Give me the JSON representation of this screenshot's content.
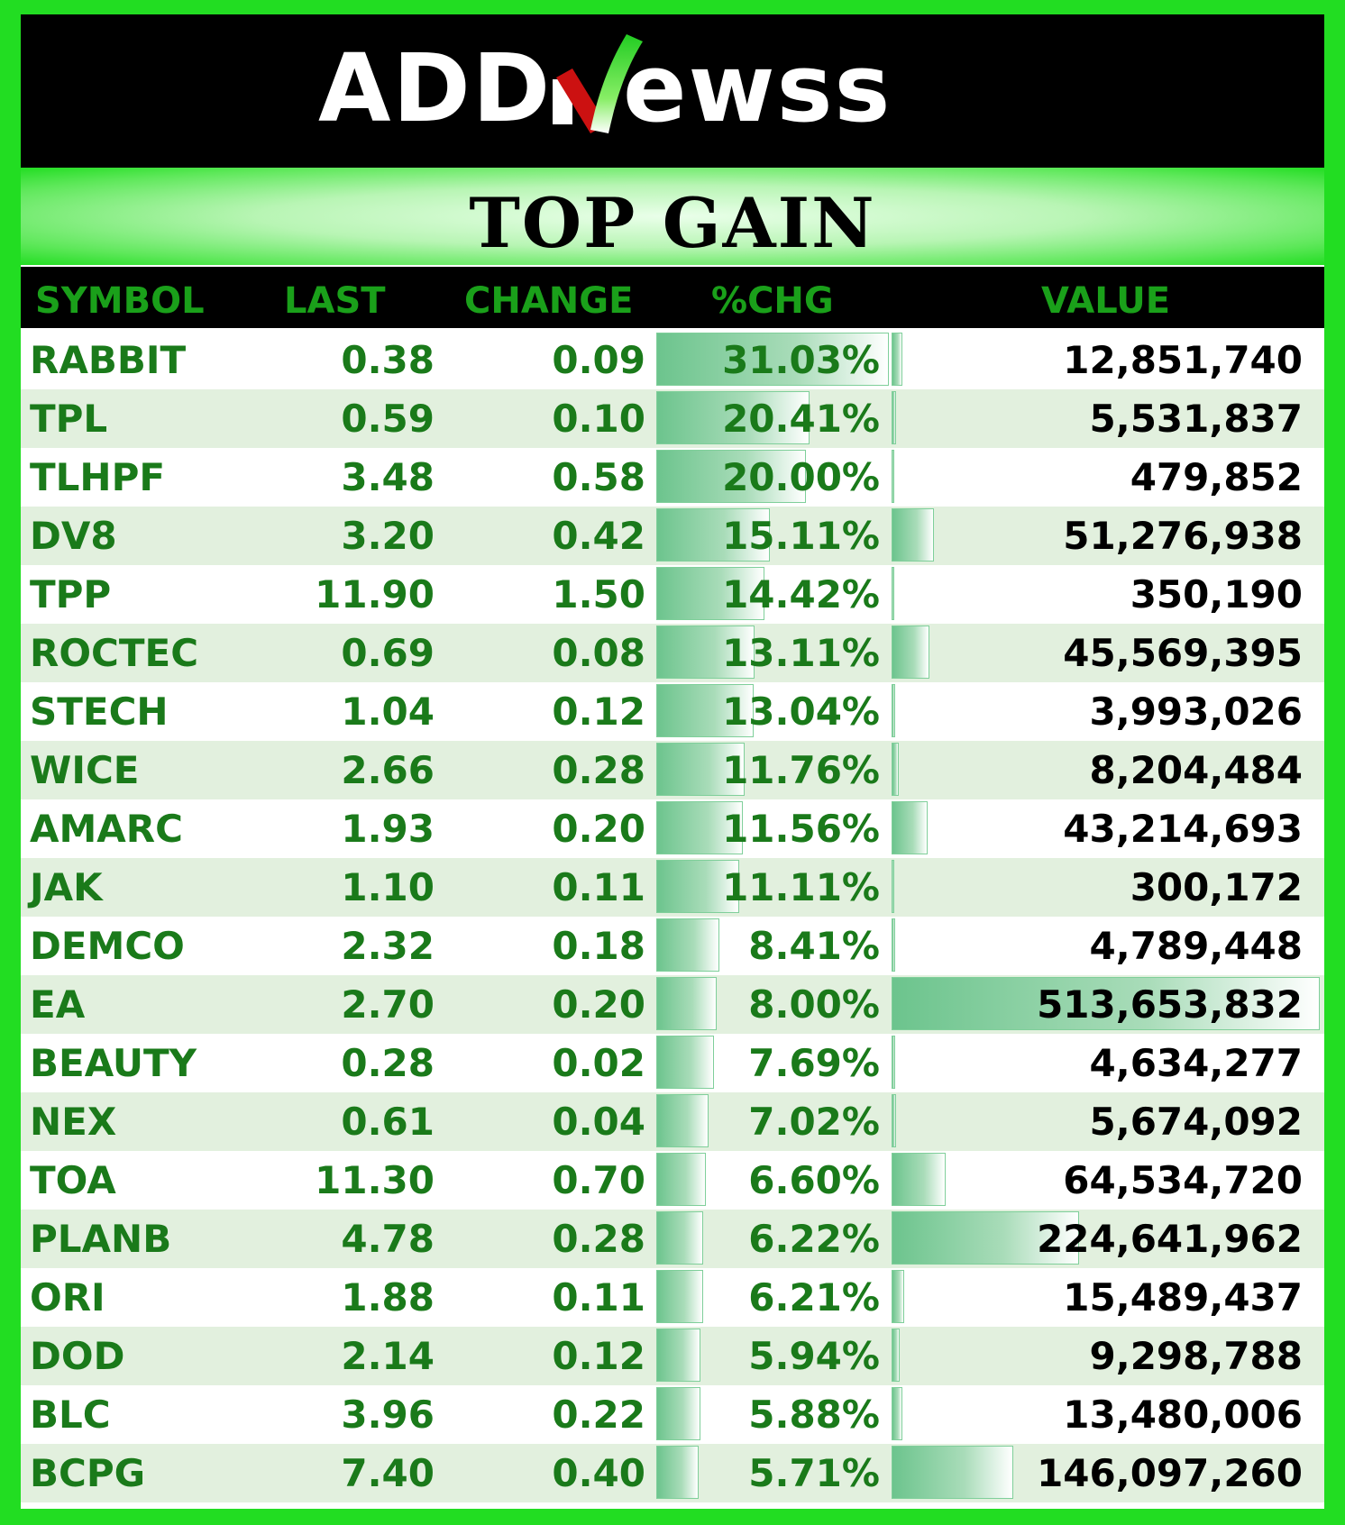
{
  "brand": {
    "name": "ADDNEWSS",
    "colors": {
      "green": "#22dd22",
      "red": "#cc1111",
      "dark_green": "#1a7a1a"
    }
  },
  "title": "TOP GAIN",
  "headers": {
    "symbol": "SYMBOL",
    "last": "LAST",
    "change": "CHANGE",
    "pct": "%CHG",
    "value": "VALUE"
  },
  "rows": [
    {
      "symbol": "RABBIT",
      "last": "0.38",
      "change": "0.09",
      "pct": "31.03%",
      "value": "12,851,740",
      "pct_num": 31.03,
      "value_num": 12851740
    },
    {
      "symbol": "TPL",
      "last": "0.59",
      "change": "0.10",
      "pct": "20.41%",
      "value": "5,531,837",
      "pct_num": 20.41,
      "value_num": 5531837
    },
    {
      "symbol": "TLHPF",
      "last": "3.48",
      "change": "0.58",
      "pct": "20.00%",
      "value": "479,852",
      "pct_num": 20.0,
      "value_num": 479852
    },
    {
      "symbol": "DV8",
      "last": "3.20",
      "change": "0.42",
      "pct": "15.11%",
      "value": "51,276,938",
      "pct_num": 15.11,
      "value_num": 51276938
    },
    {
      "symbol": "TPP",
      "last": "11.90",
      "change": "1.50",
      "pct": "14.42%",
      "value": "350,190",
      "pct_num": 14.42,
      "value_num": 350190
    },
    {
      "symbol": "ROCTEC",
      "last": "0.69",
      "change": "0.08",
      "pct": "13.11%",
      "value": "45,569,395",
      "pct_num": 13.11,
      "value_num": 45569395
    },
    {
      "symbol": "STECH",
      "last": "1.04",
      "change": "0.12",
      "pct": "13.04%",
      "value": "3,993,026",
      "pct_num": 13.04,
      "value_num": 3993026
    },
    {
      "symbol": "WICE",
      "last": "2.66",
      "change": "0.28",
      "pct": "11.76%",
      "value": "8,204,484",
      "pct_num": 11.76,
      "value_num": 8204484
    },
    {
      "symbol": "AMARC",
      "last": "1.93",
      "change": "0.20",
      "pct": "11.56%",
      "value": "43,214,693",
      "pct_num": 11.56,
      "value_num": 43214693
    },
    {
      "symbol": "JAK",
      "last": "1.10",
      "change": "0.11",
      "pct": "11.11%",
      "value": "300,172",
      "pct_num": 11.11,
      "value_num": 300172
    },
    {
      "symbol": "DEMCO",
      "last": "2.32",
      "change": "0.18",
      "pct": "8.41%",
      "value": "4,789,448",
      "pct_num": 8.41,
      "value_num": 4789448
    },
    {
      "symbol": "EA",
      "last": "2.70",
      "change": "0.20",
      "pct": "8.00%",
      "value": "513,653,832",
      "pct_num": 8.0,
      "value_num": 513653832
    },
    {
      "symbol": "BEAUTY",
      "last": "0.28",
      "change": "0.02",
      "pct": "7.69%",
      "value": "4,634,277",
      "pct_num": 7.69,
      "value_num": 4634277
    },
    {
      "symbol": "NEX",
      "last": "0.61",
      "change": "0.04",
      "pct": "7.02%",
      "value": "5,674,092",
      "pct_num": 7.02,
      "value_num": 5674092
    },
    {
      "symbol": "TOA",
      "last": "11.30",
      "change": "0.70",
      "pct": "6.60%",
      "value": "64,534,720",
      "pct_num": 6.6,
      "value_num": 64534720
    },
    {
      "symbol": "PLANB",
      "last": "4.78",
      "change": "0.28",
      "pct": "6.22%",
      "value": "224,641,962",
      "pct_num": 6.22,
      "value_num": 224641962
    },
    {
      "symbol": "ORI",
      "last": "1.88",
      "change": "0.11",
      "pct": "6.21%",
      "value": "15,489,437",
      "pct_num": 6.21,
      "value_num": 15489437
    },
    {
      "symbol": "DOD",
      "last": "2.14",
      "change": "0.12",
      "pct": "5.94%",
      "value": "9,298,788",
      "pct_num": 5.94,
      "value_num": 9298788
    },
    {
      "symbol": "BLC",
      "last": "3.96",
      "change": "0.22",
      "pct": "5.88%",
      "value": "13,480,006",
      "pct_num": 5.88,
      "value_num": 13480006
    },
    {
      "symbol": "BCPG",
      "last": "7.40",
      "change": "0.40",
      "pct": "5.71%",
      "value": "146,097,260",
      "pct_num": 5.71,
      "value_num": 146097260
    }
  ]
}
